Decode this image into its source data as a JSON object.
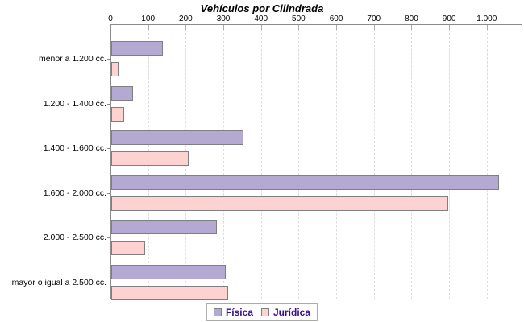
{
  "title": "Vehículos por Cilindrada",
  "chart_data": {
    "type": "bar",
    "orientation": "horizontal",
    "title": "Vehículos por Cilindrada",
    "categories": [
      "menor a 1.200 cc.",
      "1.200 - 1.400 cc.",
      "1.400 - 1.600 cc.",
      "1.600 - 2.000 cc.",
      "2.000 - 2.500 cc.",
      "mayor o igual a 2.500 cc."
    ],
    "series": [
      {
        "name": "Física",
        "color": "#b3a9d2",
        "values": [
          137,
          57,
          352,
          1030,
          280,
          305
        ]
      },
      {
        "name": "Jurídica",
        "color": "#fdd2d0",
        "values": [
          20,
          34,
          205,
          895,
          90,
          310
        ]
      }
    ],
    "x_ticks": {
      "values": [
        0,
        100,
        200,
        300,
        400,
        500,
        600,
        700,
        800,
        900,
        1000
      ],
      "labels": [
        "0",
        "100",
        "200",
        "300",
        "400",
        "500",
        "600",
        "700",
        "800",
        "900",
        "1.000"
      ]
    },
    "xlim": [
      0,
      1095
    ],
    "grid": "vertical-dashed",
    "legend_position": "bottom",
    "colors": {
      "axis": "#8c8c8c",
      "gridline": "#dcdcdc",
      "bar_border": "#7f7f7f",
      "legend_text": "#3a0f8d",
      "title_text": "#000000"
    }
  }
}
